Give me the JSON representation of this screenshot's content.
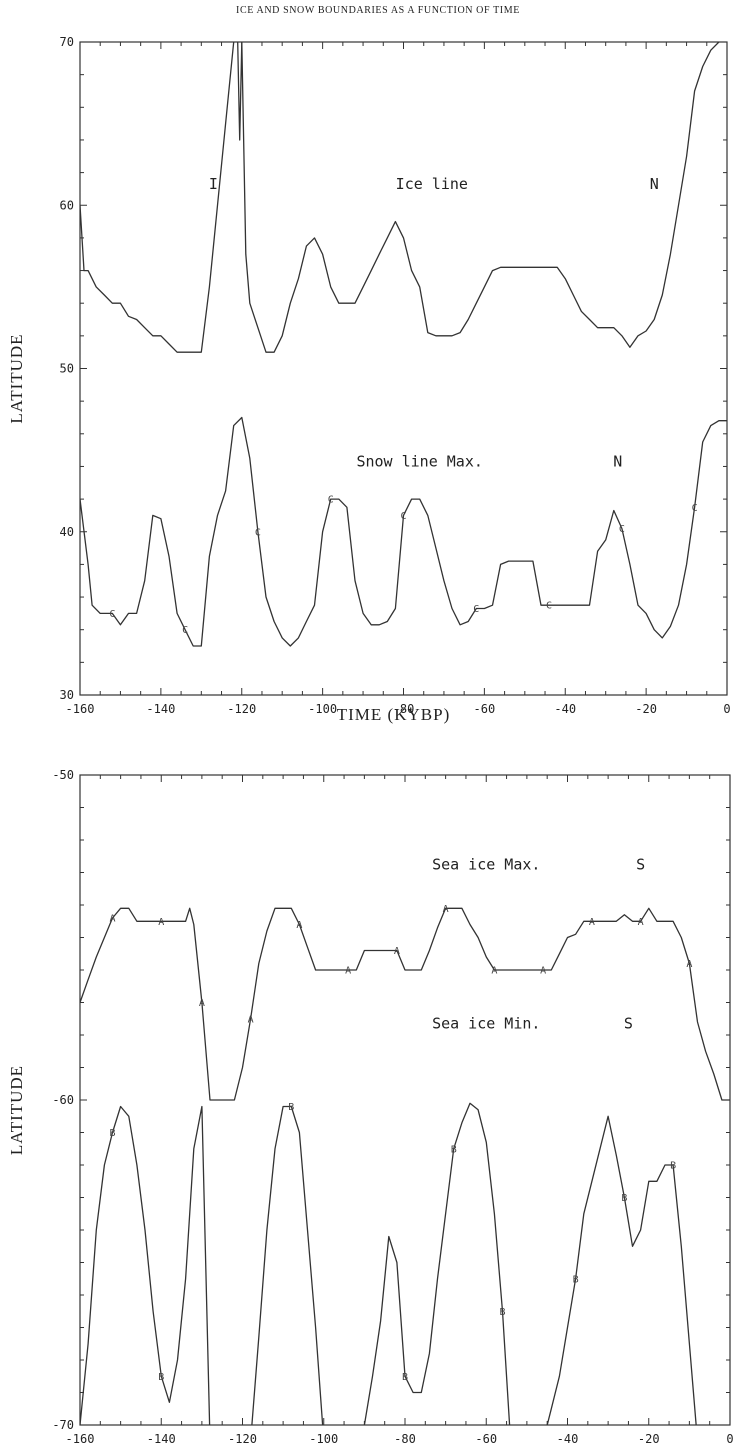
{
  "figure_title": "ICE AND SNOW BOUNDARIES AS A FUNCTION OF TIME",
  "chart_data": [
    {
      "type": "line",
      "title": "",
      "xlabel": "TIME (KYBP)",
      "ylabel": "LATITUDE",
      "xlim": [
        -160,
        0
      ],
      "ylim": [
        30,
        70
      ],
      "xticks": [
        -160,
        -140,
        -120,
        -100,
        -80,
        -60,
        -40,
        -20,
        0
      ],
      "xtick_labels": [
        "-160",
        "-140",
        "-120",
        "-100",
        "-80",
        "-60",
        "-40",
        "-20",
        "0"
      ],
      "yticks": [
        30,
        40,
        50,
        60,
        70
      ],
      "ytick_labels": [
        "30",
        "40",
        "50",
        "60",
        "70"
      ],
      "grid": false,
      "annotations": [
        {
          "text": "I",
          "x": -127,
          "y": 61
        },
        {
          "text": "Ice line",
          "x": -73,
          "y": 61
        },
        {
          "text": "N",
          "x": -18,
          "y": 61
        },
        {
          "text": "Snow line Max.",
          "x": -76,
          "y": 44
        },
        {
          "text": "N",
          "x": -27,
          "y": 44
        }
      ],
      "series": [
        {
          "marker": "",
          "x": [
            -160,
            -159,
            -158,
            -156,
            -154,
            -152,
            -150,
            -148,
            -146,
            -144,
            -142,
            -140,
            -138,
            -136,
            -134,
            -132,
            -130,
            -128,
            -126,
            -124,
            -122,
            -121.5,
            -121,
            -120.5,
            -120,
            -119,
            -118,
            -116,
            -114,
            -112,
            -110,
            -108,
            -106,
            -104,
            -102,
            -100,
            -98,
            -96,
            -94,
            -92,
            -90,
            -88,
            -86,
            -84,
            -82,
            -80,
            -78,
            -76,
            -74,
            -72,
            -70,
            -68,
            -66,
            -64,
            -62,
            -60,
            -58,
            -56,
            -54,
            -52,
            -50,
            -48,
            -46,
            -44,
            -42,
            -40,
            -38,
            -36,
            -34,
            -32,
            -30,
            -28,
            -26,
            -24,
            -22,
            -20,
            -18,
            -16,
            -14,
            -12,
            -10,
            -8,
            -6,
            -4,
            -2,
            0
          ],
          "y": [
            60,
            56,
            56,
            55,
            54.5,
            54,
            54,
            53.2,
            53,
            52.5,
            52,
            52,
            51.5,
            51,
            51,
            51,
            51,
            55,
            60,
            65,
            70,
            71,
            70,
            64,
            70,
            57,
            54,
            52.5,
            51,
            51,
            52,
            54,
            55.5,
            57.5,
            58,
            57,
            55,
            54,
            54,
            54,
            55,
            56,
            57,
            58,
            59,
            58,
            56,
            55,
            52.2,
            52,
            52,
            52,
            52.2,
            53,
            54,
            55,
            56,
            56.2,
            56.2,
            56.2,
            56.2,
            56.2,
            56.2,
            56.2,
            56.2,
            55.5,
            54.5,
            53.5,
            53,
            52.5,
            52.5,
            52.5,
            52,
            51.3,
            52,
            52.3,
            53,
            54.5,
            57,
            60,
            63,
            67,
            68.5,
            69.5,
            70,
            70.5
          ]
        },
        {
          "marker": "C",
          "x": [
            -160,
            -158,
            -157,
            -155,
            -152,
            -150,
            -148,
            -146,
            -144,
            -142,
            -140,
            -138,
            -136,
            -134,
            -132,
            -130,
            -128,
            -126,
            -124,
            -122,
            -120,
            -118,
            -116,
            -114,
            -112,
            -110,
            -108,
            -106,
            -104,
            -102,
            -100,
            -98,
            -96,
            -94,
            -92,
            -90,
            -88,
            -86,
            -84,
            -82,
            -80,
            -78,
            -76,
            -74,
            -72,
            -70,
            -68,
            -66,
            -64,
            -62,
            -60,
            -58,
            -56,
            -54,
            -52,
            -50,
            -48,
            -46,
            -44,
            -42,
            -40,
            -38,
            -36,
            -34,
            -32,
            -30,
            -28,
            -26,
            -24,
            -22,
            -20,
            -18,
            -16,
            -14,
            -12,
            -10,
            -8,
            -6,
            -4,
            -2,
            0
          ],
          "y": [
            42,
            38,
            35.5,
            35,
            35,
            34.3,
            35,
            35,
            37,
            41,
            40.8,
            38.5,
            35,
            34,
            33,
            33,
            38.5,
            41,
            42.5,
            46.5,
            47,
            44.5,
            40,
            36,
            34.5,
            33.5,
            33,
            33.5,
            34.5,
            35.5,
            40,
            42,
            42,
            41.5,
            37,
            35,
            34.3,
            34.3,
            34.5,
            35.3,
            41,
            42,
            42,
            41,
            39,
            37,
            35.3,
            34.3,
            34.5,
            35.3,
            35.3,
            35.5,
            38,
            38.2,
            38.2,
            38.2,
            38.2,
            35.5,
            35.5,
            35.5,
            35.5,
            35.5,
            35.5,
            35.5,
            38.8,
            39.5,
            41.3,
            40.2,
            38,
            35.5,
            35,
            34,
            33.5,
            34.2,
            35.5,
            38,
            41.5,
            45.5,
            46.5,
            46.8,
            46.8
          ]
        }
      ]
    },
    {
      "type": "line",
      "title": "",
      "xlabel": "",
      "ylabel": "LATITUDE",
      "xlim": [
        -160,
        0
      ],
      "ylim": [
        -70,
        -50
      ],
      "xticks": [
        -160,
        -140,
        -120,
        -100,
        -80,
        -60,
        -40,
        -20,
        0
      ],
      "xtick_labels": [
        "-160",
        "-140",
        "-120",
        "-100",
        "-80",
        "-60",
        "-40",
        "-20",
        "0"
      ],
      "yticks": [
        -70,
        -60,
        -50
      ],
      "ytick_labels": [
        "-70",
        "-60",
        "-50"
      ],
      "grid": false,
      "annotations": [
        {
          "text": "Sea ice Max.",
          "x": -60,
          "y": -52.9
        },
        {
          "text": "S",
          "x": -22,
          "y": -52.9
        },
        {
          "text": "Sea ice Min.",
          "x": -60,
          "y": -57.8
        },
        {
          "text": "S",
          "x": -25,
          "y": -57.8
        }
      ],
      "series": [
        {
          "marker": "A",
          "x": [
            -160,
            -158,
            -156,
            -154,
            -152,
            -150,
            -148,
            -146,
            -144,
            -142,
            -140,
            -138,
            -136,
            -134,
            -133,
            -132,
            -130,
            -128,
            -126,
            -124,
            -122,
            -120,
            -118,
            -116,
            -114,
            -112,
            -110,
            -108,
            -106,
            -104,
            -102,
            -100,
            -98,
            -96,
            -94,
            -92,
            -90,
            -88,
            -86,
            -84,
            -82,
            -80,
            -78,
            -76,
            -74,
            -72,
            -70,
            -68,
            -66,
            -64,
            -62,
            -60,
            -58,
            -56,
            -54,
            -52,
            -50,
            -48,
            -46,
            -44,
            -42,
            -40,
            -38,
            -36,
            -34,
            -32,
            -30,
            -28,
            -26,
            -24,
            -22,
            -20,
            -18,
            -16,
            -14,
            -12,
            -10,
            -8,
            -6,
            -4,
            -2,
            0
          ],
          "y": [
            -57,
            -56.3,
            -55.6,
            -55.0,
            -54.4,
            -54.1,
            -54.1,
            -54.5,
            -54.5,
            -54.5,
            -54.5,
            -54.5,
            -54.5,
            -54.5,
            -54.1,
            -54.6,
            -57,
            -60,
            -60,
            -60,
            -60,
            -59,
            -57.5,
            -55.8,
            -54.8,
            -54.1,
            -54.1,
            -54.1,
            -54.6,
            -55.3,
            -56,
            -56,
            -56,
            -56,
            -56,
            -56,
            -55.4,
            -55.4,
            -55.4,
            -55.4,
            -55.4,
            -56,
            -56,
            -56,
            -55.4,
            -54.7,
            -54.1,
            -54.1,
            -54.1,
            -54.6,
            -55.0,
            -55.6,
            -56,
            -56,
            -56,
            -56,
            -56,
            -56,
            -56,
            -56,
            -55.5,
            -55,
            -54.9,
            -54.5,
            -54.5,
            -54.5,
            -54.5,
            -54.5,
            -54.3,
            -54.5,
            -54.5,
            -54.1,
            -54.5,
            -54.5,
            -54.5,
            -55,
            -55.8,
            -57.6,
            -58.5,
            -59.2,
            -60,
            -60
          ]
        },
        {
          "marker": "B",
          "x": [
            -160,
            -158,
            -156,
            -154,
            -152,
            -150,
            -148,
            -146,
            -144,
            -142,
            -140,
            -138,
            -136,
            -134,
            -132,
            -130,
            -128,
            -118,
            -116,
            -114,
            -112,
            -110,
            -108,
            -106,
            -104,
            -102,
            -100,
            -98,
            -92,
            -90,
            -88,
            -86,
            -84,
            -82,
            -80,
            -78,
            -76,
            -74,
            -72,
            -70,
            -68,
            -66,
            -64,
            -62,
            -60,
            -58,
            -56,
            -54,
            -46,
            -44,
            -42,
            -40,
            -38,
            -36,
            -34,
            -32,
            -30,
            -28,
            -26,
            -24,
            -22,
            -20,
            -18,
            -16,
            -14,
            -12,
            -10,
            -8,
            -6,
            -4,
            -2,
            0
          ],
          "y": [
            -70,
            -67.5,
            -64,
            -62,
            -61,
            -60.2,
            -60.5,
            -62,
            -64,
            -66.5,
            -68.5,
            -69.3,
            -68,
            -65.5,
            -61.5,
            -60.2,
            -70.5,
            -70.5,
            -67.3,
            -64,
            -61.5,
            -60.2,
            -60.2,
            -61,
            -64,
            -67,
            -70.5,
            -72,
            -72,
            -70,
            -68.5,
            -66.8,
            -64.2,
            -65,
            -68.5,
            -69,
            -69,
            -67.8,
            -65.5,
            -63.5,
            -61.5,
            -60.7,
            -60.1,
            -60.3,
            -61.3,
            -63.5,
            -66.5,
            -70.5,
            -70.5,
            -69.5,
            -68.5,
            -67,
            -65.5,
            -63.5,
            -62.5,
            -61.5,
            -60.5,
            -61.7,
            -63,
            -64.5,
            -64,
            -62.5,
            -62.5,
            -62,
            -62,
            -64.5,
            -67.5,
            -70.5,
            -72,
            -72,
            -72,
            -72
          ]
        }
      ]
    }
  ]
}
